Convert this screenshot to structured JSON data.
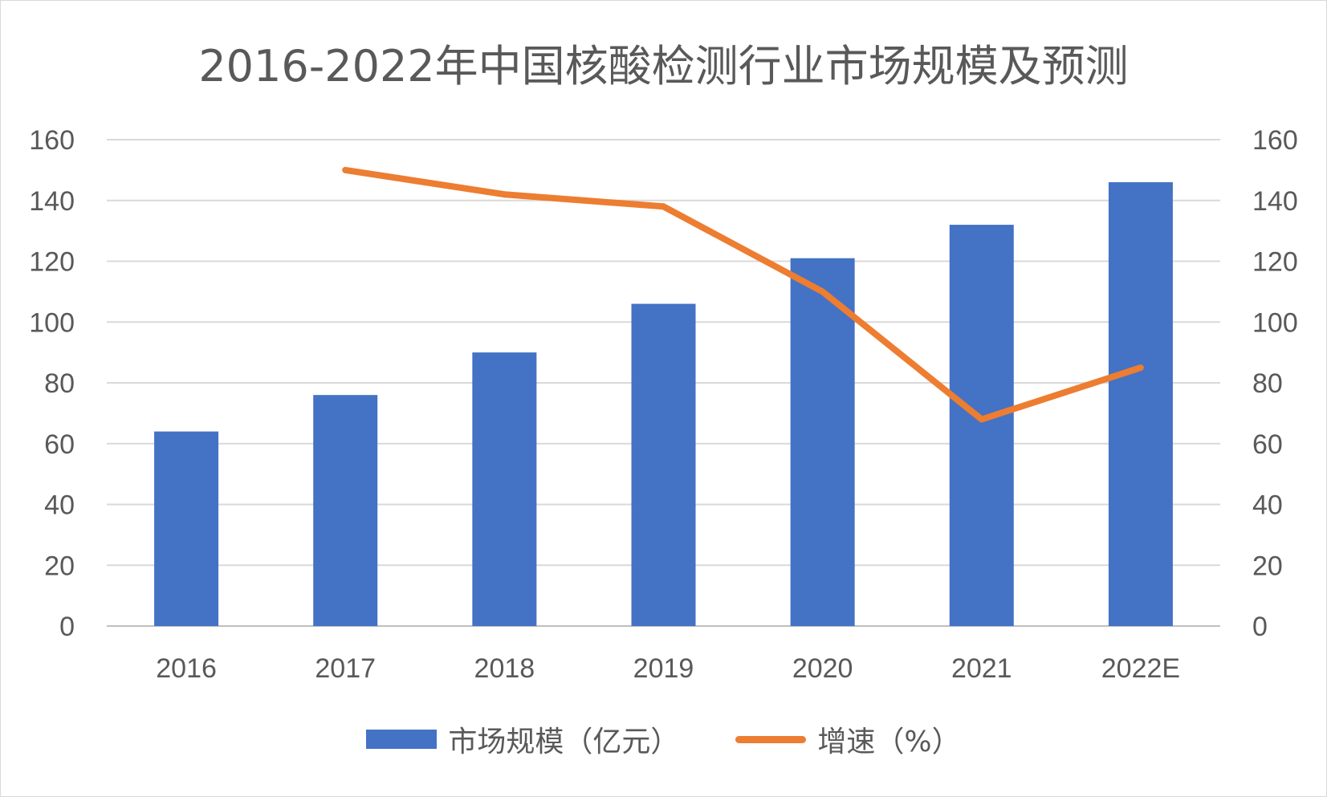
{
  "chart_data": {
    "type": "bar",
    "title": "2016-2022年中国核酸检测行业市场规模及预测",
    "categories": [
      "2016",
      "2017",
      "2018",
      "2019",
      "2020",
      "2021",
      "2022E"
    ],
    "series": [
      {
        "name": "市场规模（亿元）",
        "type": "bar",
        "axis": "left",
        "color": "#4472c4",
        "values": [
          64,
          76,
          90,
          106,
          121,
          132,
          146
        ]
      },
      {
        "name": "增速（%）",
        "type": "line",
        "axis": "right",
        "color": "#ed7d31",
        "values": [
          null,
          150,
          142,
          138,
          110,
          68,
          85
        ]
      }
    ],
    "y_left": {
      "ticks": [
        "0",
        "20",
        "40",
        "60",
        "80",
        "100",
        "120",
        "140",
        "160"
      ],
      "ylim": [
        0,
        160
      ]
    },
    "y_right": {
      "ticks": [
        "0",
        "20",
        "40",
        "60",
        "80",
        "100",
        "120",
        "140",
        "160"
      ],
      "ylim": [
        0,
        160
      ]
    },
    "grid": true,
    "legend_position": "bottom"
  }
}
